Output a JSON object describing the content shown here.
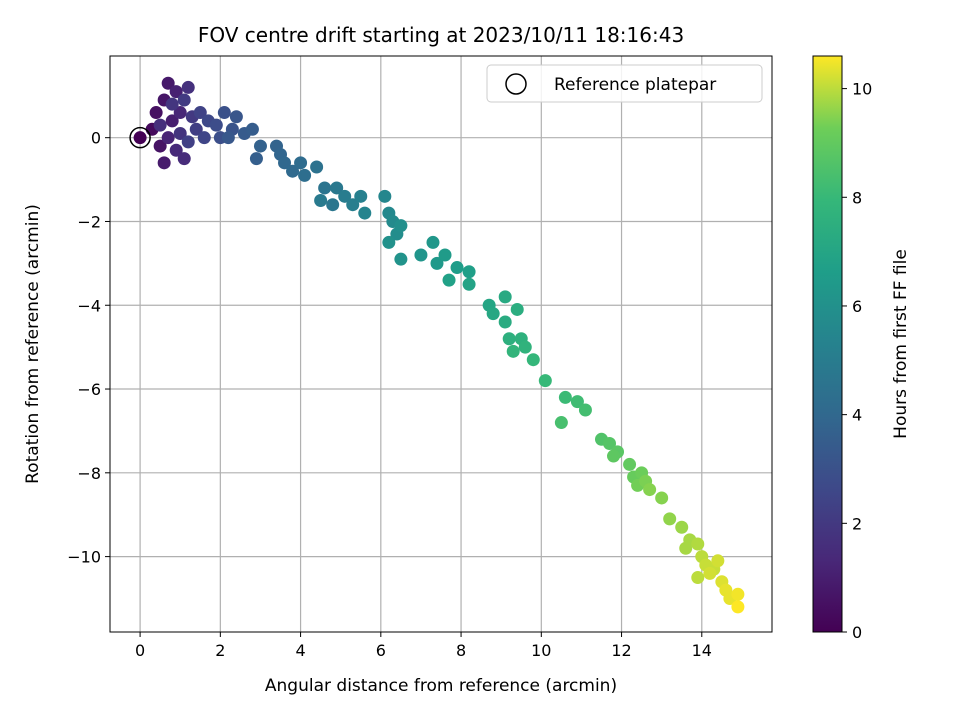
{
  "chart_data": {
    "type": "scatter",
    "title": "FOV centre drift starting at 2023/10/11 18:16:43",
    "xlabel": "Angular distance from reference (arcmin)",
    "ylabel": "Rotation from reference (arcmin)",
    "xlim": [
      -0.75,
      15.75
    ],
    "ylim": [
      -11.8,
      1.95
    ],
    "xticks": [
      0,
      2,
      4,
      6,
      8,
      10,
      12,
      14
    ],
    "yticks": [
      0,
      -2,
      -4,
      -6,
      -8,
      -10
    ],
    "grid": true,
    "colormap": "viridis",
    "colorbar": {
      "label": "Hours from first FF file",
      "range": [
        0,
        10.6
      ],
      "ticks": [
        0,
        2,
        4,
        6,
        8,
        10
      ]
    },
    "legend": {
      "placement": "upper right",
      "entries": [
        {
          "label": "Reference platepar",
          "marker": "hollow-circle"
        }
      ]
    },
    "reference_point": {
      "x": 0,
      "y": 0,
      "label": "Reference platepar"
    },
    "points": [
      [
        0.3,
        0.2,
        0.3
      ],
      [
        0.4,
        0.6,
        0.5
      ],
      [
        0.5,
        -0.2,
        0.6
      ],
      [
        0.6,
        0.9,
        0.7
      ],
      [
        0.7,
        1.3,
        0.8
      ],
      [
        0.6,
        -0.6,
        0.9
      ],
      [
        0.8,
        0.4,
        1.0
      ],
      [
        0.9,
        1.1,
        1.1
      ],
      [
        0.7,
        0.0,
        1.2
      ],
      [
        1.0,
        0.6,
        1.3
      ],
      [
        0.9,
        -0.3,
        1.4
      ],
      [
        1.1,
        -0.5,
        1.5
      ],
      [
        0.5,
        0.3,
        1.6
      ],
      [
        1.2,
        1.2,
        1.7
      ],
      [
        1.0,
        0.1,
        1.8
      ],
      [
        0.8,
        0.8,
        1.9
      ],
      [
        1.3,
        0.5,
        2.0
      ],
      [
        1.1,
        0.9,
        2.1
      ],
      [
        1.4,
        0.2,
        2.2
      ],
      [
        1.2,
        -0.1,
        2.3
      ],
      [
        1.5,
        0.6,
        2.4
      ],
      [
        1.6,
        0.0,
        2.5
      ],
      [
        1.7,
        0.4,
        2.6
      ],
      [
        1.9,
        0.3,
        2.8
      ],
      [
        2.0,
        0.0,
        2.9
      ],
      [
        2.1,
        0.6,
        3.0
      ],
      [
        2.3,
        0.2,
        3.1
      ],
      [
        2.4,
        0.5,
        3.2
      ],
      [
        2.2,
        0.0,
        3.3
      ],
      [
        2.6,
        0.1,
        3.4
      ],
      [
        2.8,
        0.2,
        3.5
      ],
      [
        2.9,
        -0.5,
        3.6
      ],
      [
        3.0,
        -0.2,
        3.7
      ],
      [
        3.4,
        -0.2,
        3.8
      ],
      [
        3.5,
        -0.4,
        3.9
      ],
      [
        3.6,
        -0.6,
        4.0
      ],
      [
        3.8,
        -0.8,
        4.1
      ],
      [
        4.0,
        -0.6,
        4.2
      ],
      [
        4.1,
        -0.9,
        4.3
      ],
      [
        4.4,
        -0.7,
        4.5
      ],
      [
        4.6,
        -1.2,
        4.6
      ],
      [
        4.8,
        -1.6,
        4.7
      ],
      [
        4.9,
        -1.2,
        4.8
      ],
      [
        4.5,
        -1.5,
        4.9
      ],
      [
        5.1,
        -1.4,
        5.0
      ],
      [
        5.3,
        -1.6,
        5.1
      ],
      [
        5.5,
        -1.4,
        5.2
      ],
      [
        5.6,
        -1.8,
        5.4
      ],
      [
        6.1,
        -1.4,
        5.5
      ],
      [
        6.2,
        -1.8,
        5.6
      ],
      [
        6.3,
        -2.0,
        5.7
      ],
      [
        6.4,
        -2.3,
        5.8
      ],
      [
        6.5,
        -2.1,
        5.9
      ],
      [
        6.2,
        -2.5,
        6.0
      ],
      [
        6.5,
        -2.9,
        6.1
      ],
      [
        7.0,
        -2.8,
        6.2
      ],
      [
        7.3,
        -2.5,
        6.3
      ],
      [
        7.4,
        -3.0,
        6.4
      ],
      [
        7.6,
        -2.8,
        6.5
      ],
      [
        7.9,
        -3.1,
        6.6
      ],
      [
        8.2,
        -3.2,
        6.7
      ],
      [
        7.7,
        -3.4,
        6.8
      ],
      [
        8.2,
        -3.5,
        6.9
      ],
      [
        8.7,
        -4.0,
        7.0
      ],
      [
        8.8,
        -4.2,
        7.1
      ],
      [
        9.1,
        -3.8,
        7.2
      ],
      [
        9.1,
        -4.4,
        7.3
      ],
      [
        9.4,
        -4.1,
        7.4
      ],
      [
        9.2,
        -4.8,
        7.5
      ],
      [
        9.5,
        -4.8,
        7.6
      ],
      [
        9.6,
        -5.0,
        7.7
      ],
      [
        9.3,
        -5.1,
        7.8
      ],
      [
        9.8,
        -5.3,
        7.9
      ],
      [
        10.1,
        -5.8,
        8.0
      ],
      [
        10.6,
        -6.2,
        8.1
      ],
      [
        10.9,
        -6.3,
        8.2
      ],
      [
        11.1,
        -6.5,
        8.3
      ],
      [
        10.5,
        -6.8,
        8.4
      ],
      [
        11.5,
        -7.2,
        8.6
      ],
      [
        11.7,
        -7.3,
        8.7
      ],
      [
        11.9,
        -7.5,
        8.8
      ],
      [
        11.8,
        -7.6,
        8.9
      ],
      [
        12.2,
        -7.8,
        9.0
      ],
      [
        12.3,
        -8.1,
        9.1
      ],
      [
        12.5,
        -8.0,
        9.2
      ],
      [
        12.4,
        -8.3,
        9.3
      ],
      [
        12.6,
        -8.2,
        9.4
      ],
      [
        12.7,
        -8.4,
        9.5
      ],
      [
        13.0,
        -8.6,
        9.5
      ],
      [
        13.2,
        -9.1,
        9.6
      ],
      [
        13.5,
        -9.3,
        9.7
      ],
      [
        13.7,
        -9.6,
        9.8
      ],
      [
        13.6,
        -9.8,
        9.8
      ],
      [
        13.9,
        -9.7,
        9.9
      ],
      [
        14.0,
        -10.0,
        10.0
      ],
      [
        14.1,
        -10.2,
        10.1
      ],
      [
        14.3,
        -10.3,
        10.1
      ],
      [
        14.4,
        -10.1,
        10.2
      ],
      [
        14.2,
        -10.4,
        10.2
      ],
      [
        14.5,
        -10.6,
        10.3
      ],
      [
        14.6,
        -10.8,
        10.4
      ],
      [
        14.7,
        -11.0,
        10.4
      ],
      [
        14.9,
        -10.9,
        10.5
      ],
      [
        14.9,
        -11.2,
        10.6
      ],
      [
        13.9,
        -10.5,
        10.0
      ]
    ]
  }
}
